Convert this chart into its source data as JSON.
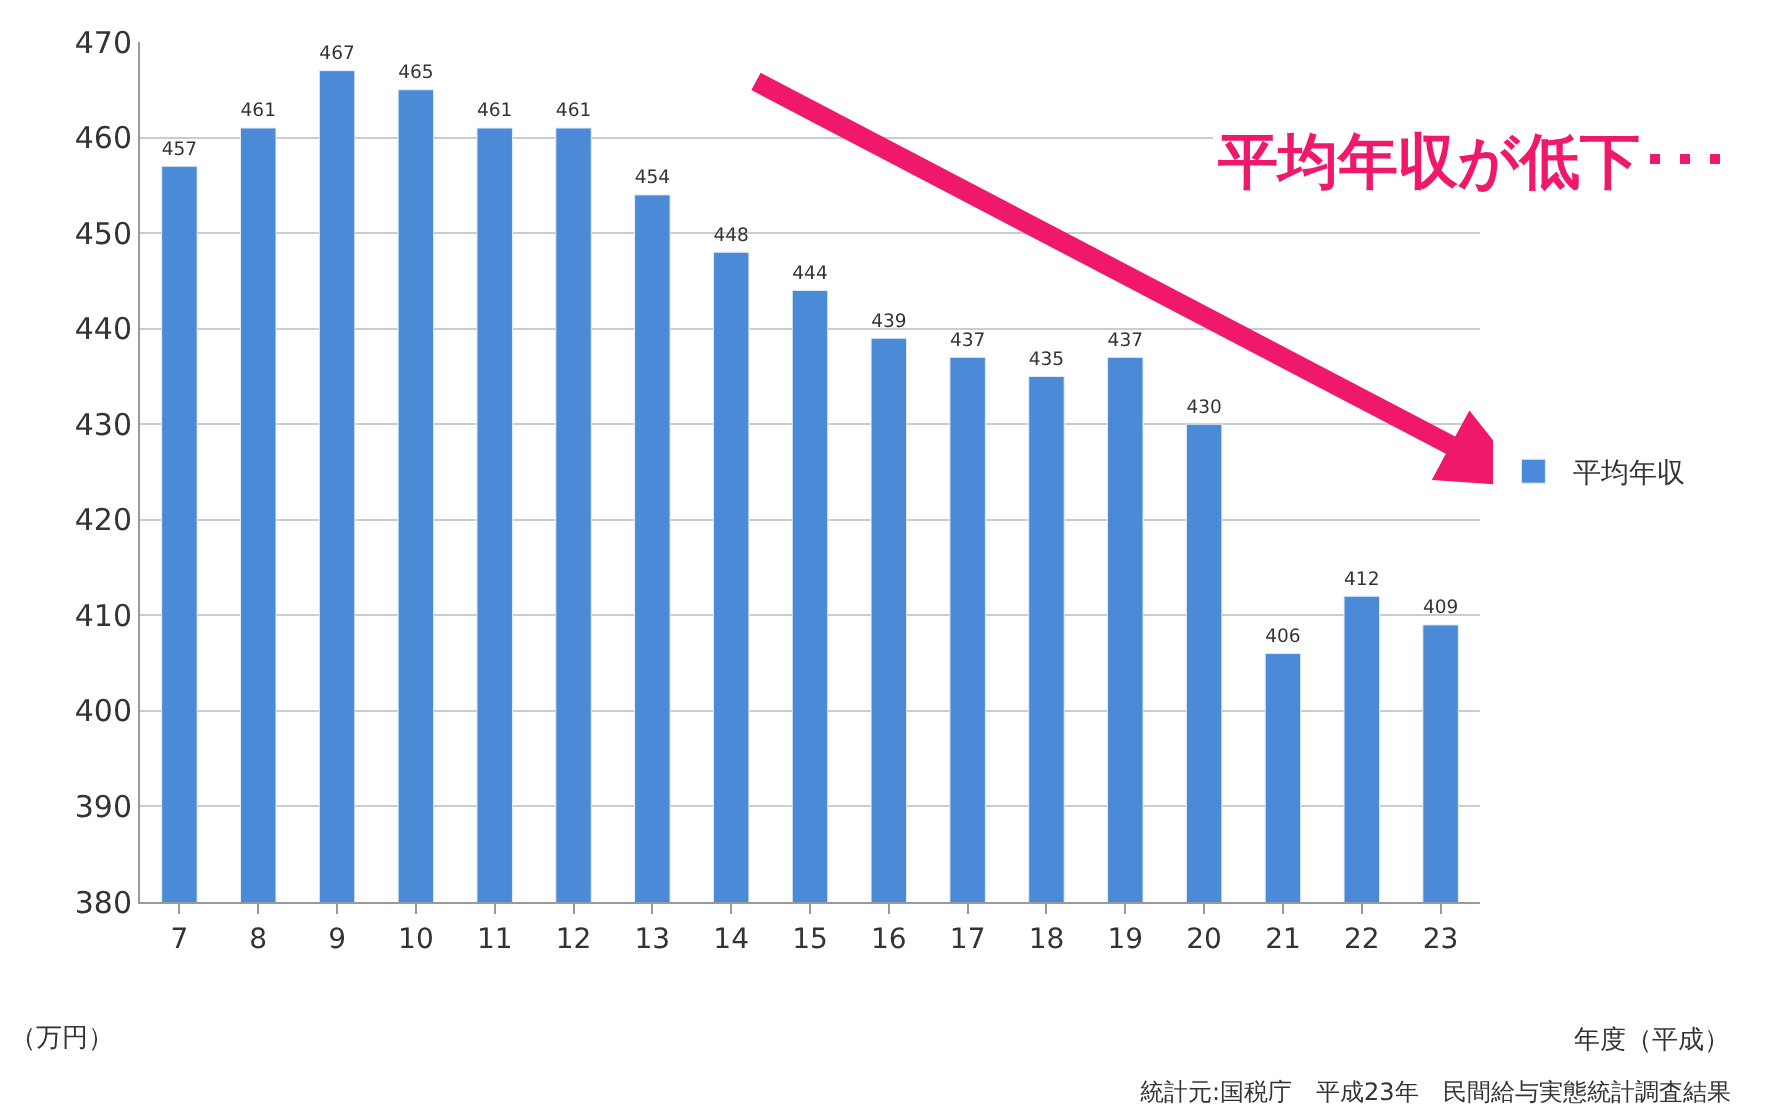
{
  "chart_data": {
    "type": "bar",
    "categories": [
      "7",
      "8",
      "9",
      "10",
      "11",
      "12",
      "13",
      "14",
      "15",
      "16",
      "17",
      "18",
      "19",
      "20",
      "21",
      "22",
      "23"
    ],
    "series": [
      {
        "name": "平均年収",
        "color": "#4a8ad6",
        "values": [
          457,
          461,
          467,
          465,
          461,
          461,
          454,
          448,
          444,
          439,
          437,
          435,
          437,
          430,
          406,
          412,
          409
        ]
      }
    ],
    "ylim": [
      380,
      470
    ],
    "yticks": [
      380,
      390,
      400,
      410,
      420,
      430,
      440,
      450,
      460,
      470
    ],
    "xlabel": "年度（平成）",
    "ylabel": "（万円）",
    "annotations": [
      "平均年収が低下･･･",
      "統計元:国税庁　平成23年　民間給与実態統計調査結果"
    ],
    "data_labels": true,
    "grid": "y",
    "legend": "right"
  }
}
